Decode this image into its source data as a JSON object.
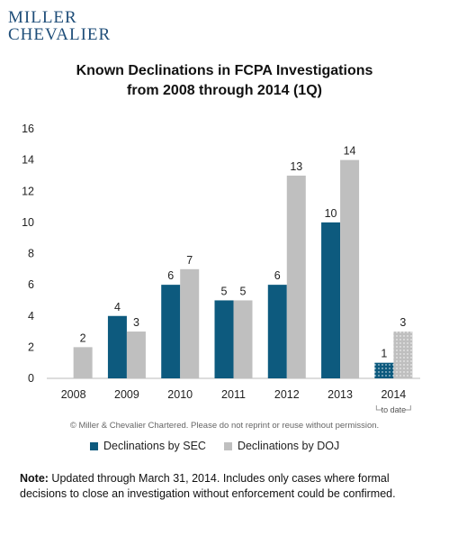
{
  "logo": {
    "line1": "MILLER",
    "line2": "CHEVALIER"
  },
  "title_line1": "Known Declinations in FCPA Investigations",
  "title_line2": "from 2008 through 2014 (1Q)",
  "copyright": "© Miller & Chevalier Chartered. Please do not reprint or reuse without permission.",
  "note_label": "Note:",
  "note_text": " Updated through March 31, 2014.  Includes only cases where formal decisions to close an investigation without enforcement could be confirmed.",
  "colors": {
    "sec": "#0d5a7e",
    "doj": "#bfbfbf"
  },
  "chart_data": {
    "type": "bar",
    "categories": [
      "2008",
      "2009",
      "2010",
      "2011",
      "2012",
      "2013",
      "2014"
    ],
    "category_sublabels": [
      "",
      "",
      "",
      "",
      "",
      "",
      "to date"
    ],
    "series": [
      {
        "name": "Declinations by SEC",
        "values": [
          0,
          4,
          6,
          5,
          6,
          10,
          1
        ],
        "labels": [
          "",
          "4",
          "6",
          "5",
          "6",
          "10",
          "1"
        ]
      },
      {
        "name": "Declinations by DOJ",
        "values": [
          2,
          3,
          7,
          5,
          13,
          14,
          3
        ],
        "labels": [
          "2",
          "3",
          "7",
          "5",
          "13",
          "14",
          "3"
        ]
      }
    ],
    "patterned_category": "2014",
    "ylim": [
      0,
      16
    ],
    "yticks": [
      "0",
      "2",
      "4",
      "6",
      "8",
      "10",
      "12",
      "14",
      "16"
    ],
    "grid": false,
    "legend_position": "bottom"
  }
}
